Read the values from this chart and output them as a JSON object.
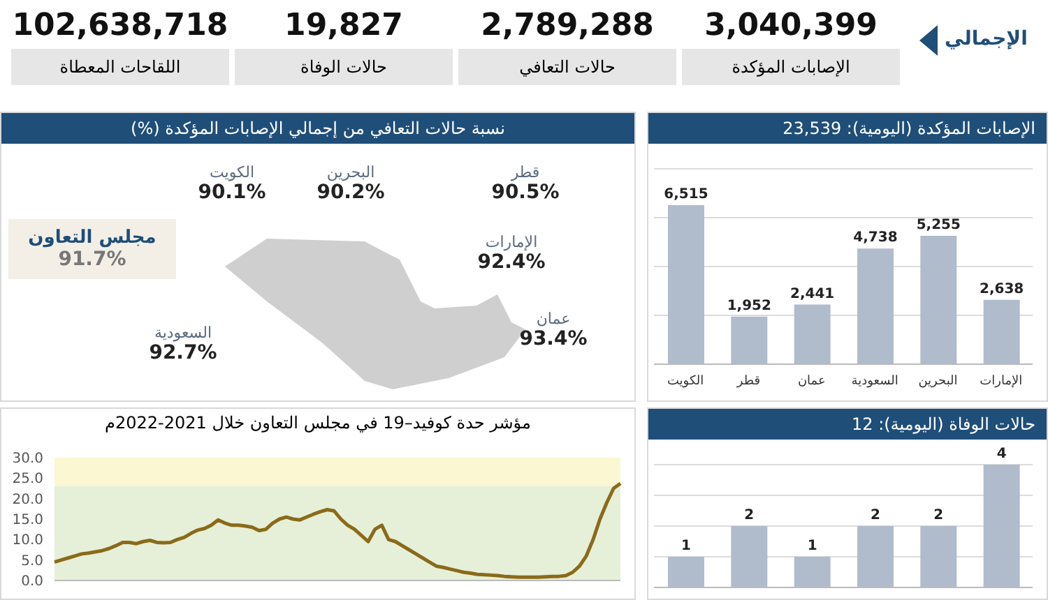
{
  "chart_data": [
    {
      "type": "other",
      "title": "الإجمالي",
      "categories": [
        "اللقاحات المعطاة",
        "حالات الوفاة",
        "حالات التعافي",
        "الإصابات المؤكدة"
      ],
      "value_labels": [
        "102,638,718",
        "19,827",
        "2,789,288",
        "3,040,399"
      ]
    },
    {
      "type": "other",
      "title": "نسبة حالات التعافي من إجمالي الإصابات المؤكدة (%)",
      "categories": [
        "مجلس التعاون",
        "الكويت",
        "البحرين",
        "قطر",
        "الإمارات",
        "عمان",
        "السعودية"
      ],
      "value_labels": [
        "91.7%",
        "90.1%",
        "90.2%",
        "90.5%",
        "92.4%",
        "93.4%",
        "92.7%"
      ]
    },
    {
      "type": "bar",
      "title": "الإصابات المؤكدة (اليومية): 23,539",
      "categories": [
        "الكويت",
        "قطر",
        "عمان",
        "السعودية",
        "البحرين",
        "الإمارات"
      ],
      "values": [
        6515,
        1952,
        2441,
        4738,
        5255,
        2638
      ],
      "value_labels": [
        "6,515",
        "1,952",
        "2,441",
        "4,738",
        "5,255",
        "2,638"
      ],
      "color": "#b0bccc",
      "grid": "y",
      "tick_labels": "x"
    },
    {
      "type": "line",
      "title": "مؤشر حدة كوفيد–19 في مجلس التعاون خلال 2021-2022م",
      "categories": [
        null,
        null,
        null,
        null,
        null,
        null,
        null,
        null,
        null,
        null,
        null,
        null,
        null,
        null,
        null,
        null,
        null,
        null,
        null,
        null,
        null,
        null,
        null,
        null,
        null,
        null,
        null,
        null,
        null,
        null,
        null,
        null,
        null,
        null,
        null,
        null,
        null,
        null,
        null,
        null,
        null,
        null,
        null,
        null,
        null,
        null,
        null,
        null,
        null,
        null,
        null,
        null,
        null,
        null,
        null,
        null,
        null,
        null,
        null,
        null,
        null,
        null,
        null,
        null,
        null,
        null,
        null,
        null,
        null,
        null,
        null,
        null,
        null,
        null,
        null,
        null,
        null,
        null,
        null,
        null,
        null,
        null,
        null,
        null
      ],
      "values": [
        4.5,
        5.0,
        5.5,
        6.0,
        6.5,
        6.7,
        7.0,
        7.3,
        7.8,
        8.5,
        9.3,
        9.3,
        9.0,
        9.5,
        9.8,
        9.3,
        9.2,
        9.3,
        10.0,
        10.5,
        11.5,
        12.3,
        12.7,
        13.5,
        14.8,
        14.0,
        13.5,
        13.5,
        13.3,
        13.0,
        12.2,
        12.5,
        14.0,
        15.0,
        15.5,
        15.0,
        14.8,
        15.5,
        16.2,
        16.8,
        17.3,
        17.0,
        15.0,
        13.5,
        12.5,
        11.0,
        9.5,
        12.5,
        13.5,
        10.0,
        9.5,
        8.5,
        7.5,
        6.5,
        5.5,
        4.5,
        3.5,
        3.2,
        2.8,
        2.4,
        2.0,
        1.8,
        1.5,
        1.4,
        1.3,
        1.2,
        1.0,
        0.9,
        0.8,
        0.8,
        0.8,
        0.8,
        0.9,
        1.0,
        1.0,
        1.2,
        2.0,
        3.5,
        6.0,
        10.0,
        15.0,
        19.0,
        22.5,
        23.7
      ],
      "color": "#8a6a1a",
      "ylim": [
        0,
        30
      ],
      "yticks": [
        {
          "value": 0,
          "label": "0.0"
        },
        {
          "value": 5,
          "label": "5.0"
        },
        {
          "value": 10,
          "label": "10.0"
        },
        {
          "value": 15,
          "label": "15.0"
        },
        {
          "value": 20,
          "label": "20.0"
        },
        {
          "value": 25,
          "label": "25.0"
        },
        {
          "value": 30,
          "label": "30.0"
        }
      ],
      "tick_labels": "y",
      "marker": "none",
      "bands": [
        {
          "axis": "y",
          "from": 0,
          "to": 23,
          "color": "#e6f0d8"
        },
        {
          "axis": "y",
          "from": 23,
          "to": 30,
          "color": "#fbf7d2"
        }
      ]
    },
    {
      "type": "bar",
      "title": "حالات الوفاة (اليومية): 12",
      "categories": [
        null,
        null,
        null,
        null,
        null,
        null
      ],
      "values": [
        1,
        2,
        1,
        2,
        2,
        4
      ],
      "color": "#b0bccc",
      "data_labels": true,
      "grid": "y",
      "tick_labels": false
    }
  ]
}
